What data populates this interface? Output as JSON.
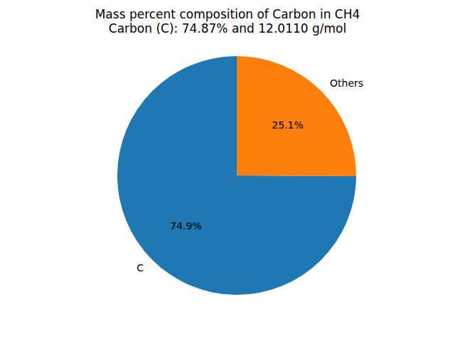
{
  "chart_data": {
    "type": "pie",
    "title": "Mass percent composition of Carbon in CH4",
    "subtitle": "Carbon (C): 74.87% and 12.0110 g/mol",
    "categories": [
      "C",
      "Others"
    ],
    "values": [
      74.9,
      25.1
    ],
    "value_labels": [
      "74.9%",
      "25.1%"
    ],
    "colors": [
      "#1f77b4",
      "#ff7f0e"
    ],
    "data_labels": true
  }
}
